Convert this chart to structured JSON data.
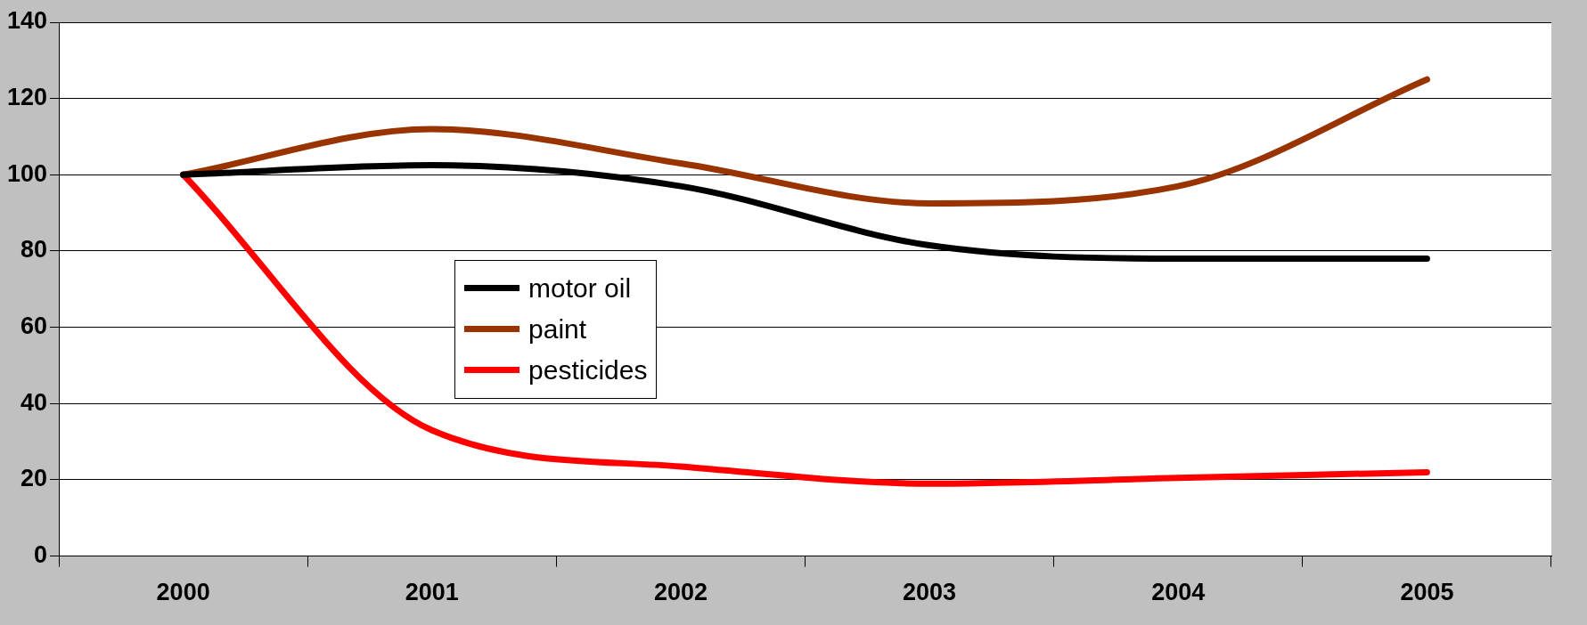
{
  "chart_data": {
    "type": "line",
    "categories": [
      "2000",
      "2001",
      "2002",
      "2003",
      "2004",
      "2005"
    ],
    "series": [
      {
        "name": "motor oil",
        "color": "#000000",
        "values": [
          100,
          102.5,
          97,
          81.5,
          78,
          78
        ]
      },
      {
        "name": "paint",
        "color": "#993300",
        "values": [
          100,
          112,
          103,
          92.5,
          97,
          125
        ]
      },
      {
        "name": "pesticides",
        "color": "#ff0000",
        "values": [
          100,
          33,
          23.5,
          19,
          20.5,
          22
        ]
      }
    ],
    "ylim": [
      0,
      140
    ],
    "yticks": [
      0,
      20,
      40,
      60,
      80,
      100,
      120,
      140
    ],
    "grid": "y",
    "legend": "center",
    "marker": "none",
    "line_style": "solid"
  }
}
